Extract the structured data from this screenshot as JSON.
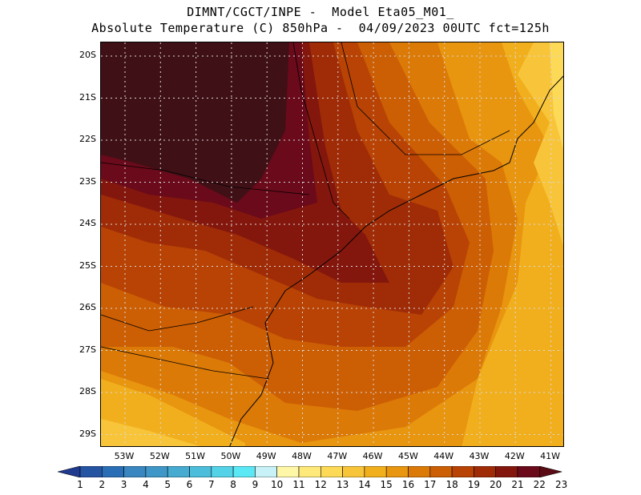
{
  "title": {
    "line1": "DIMNT/CGCT/INPE -  Model Eta05_M01_",
    "line2": "Absolute Temperature (C) 850hPa -  04/09/2023 00UTC fct=125h"
  },
  "lat_labels": [
    "20S",
    "21S",
    "22S",
    "23S",
    "24S",
    "25S",
    "26S",
    "27S",
    "28S",
    "29S"
  ],
  "lon_labels": [
    "53W",
    "52W",
    "51W",
    "50W",
    "49W",
    "48W",
    "47W",
    "46W",
    "45W",
    "44W",
    "43W",
    "42W",
    "41W"
  ],
  "colorbar": {
    "labels": [
      "1",
      "2",
      "3",
      "4",
      "5",
      "6",
      "7",
      "8",
      "9",
      "10",
      "11",
      "12",
      "13",
      "14",
      "15",
      "16",
      "17",
      "18",
      "19",
      "20",
      "21",
      "22",
      "23"
    ],
    "colors": [
      "#1f3a8f",
      "#2554a3",
      "#2a6fb5",
      "#3a86c0",
      "#3f97c7",
      "#46aad1",
      "#4cbedc",
      "#53d2e8",
      "#5be8f5",
      "#c8f2f7",
      "#fff7a8",
      "#ffe97a",
      "#fcd957",
      "#f8c53a",
      "#f1af1e",
      "#e8950f",
      "#dc7a08",
      "#cc5e04",
      "#b84304",
      "#9f2c07",
      "#84170d",
      "#6a0a1a",
      "#5a0b14"
    ]
  },
  "map": {
    "variable": "Absolute Temperature (C) 850hPa",
    "colors": {
      "t22": "#6a0a1a",
      "t21": "#84170d",
      "t20": "#9f2c07",
      "t19": "#b84304",
      "t18": "#cc5e04",
      "t17": "#dc7a08",
      "t16": "#e8950f",
      "t15": "#f1af1e",
      "t14": "#f8c53a",
      "t13": "#fcd957",
      "dark": "#3f1016"
    }
  }
}
